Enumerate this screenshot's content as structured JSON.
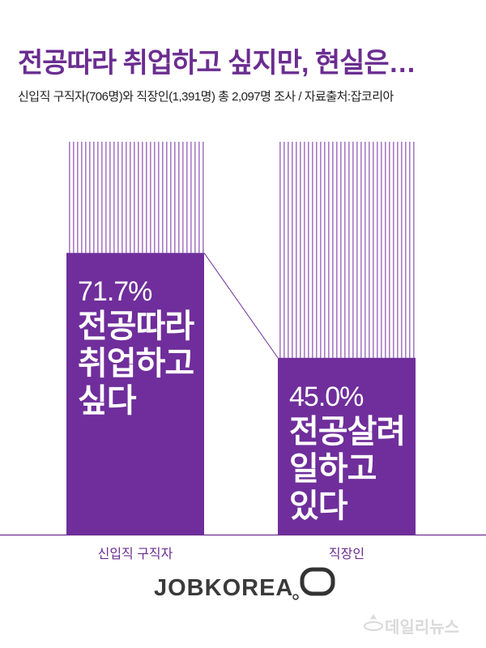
{
  "header": {
    "title": "전공따라 취업하고 싶지만, 현실은…",
    "subtitle": "신입직 구직자(706명)와 직장인(1,391명) 총 2,097명 조사  / 자료출처:잡코리아"
  },
  "colors": {
    "accent": "#6b2d90",
    "bar": "#6f2e9b",
    "stripe": "#a77bc3",
    "axis": "#6b2d90"
  },
  "chart_data": {
    "type": "bar",
    "categories": [
      "신입직 구직자",
      "직장인"
    ],
    "values": [
      71.7,
      45.0
    ],
    "ylim": [
      0,
      100
    ],
    "bar_labels": [
      {
        "value_text": "71.7%",
        "lines": [
          "전공따라",
          "취업하고",
          "싶다"
        ]
      },
      {
        "value_text": "45.0%",
        "lines": [
          "전공살려",
          "일하고",
          "있다"
        ]
      }
    ],
    "grid": false,
    "legend": "none"
  },
  "footer": {
    "logo": "JOBKOREA",
    "watermark": "데일리뉴스"
  }
}
